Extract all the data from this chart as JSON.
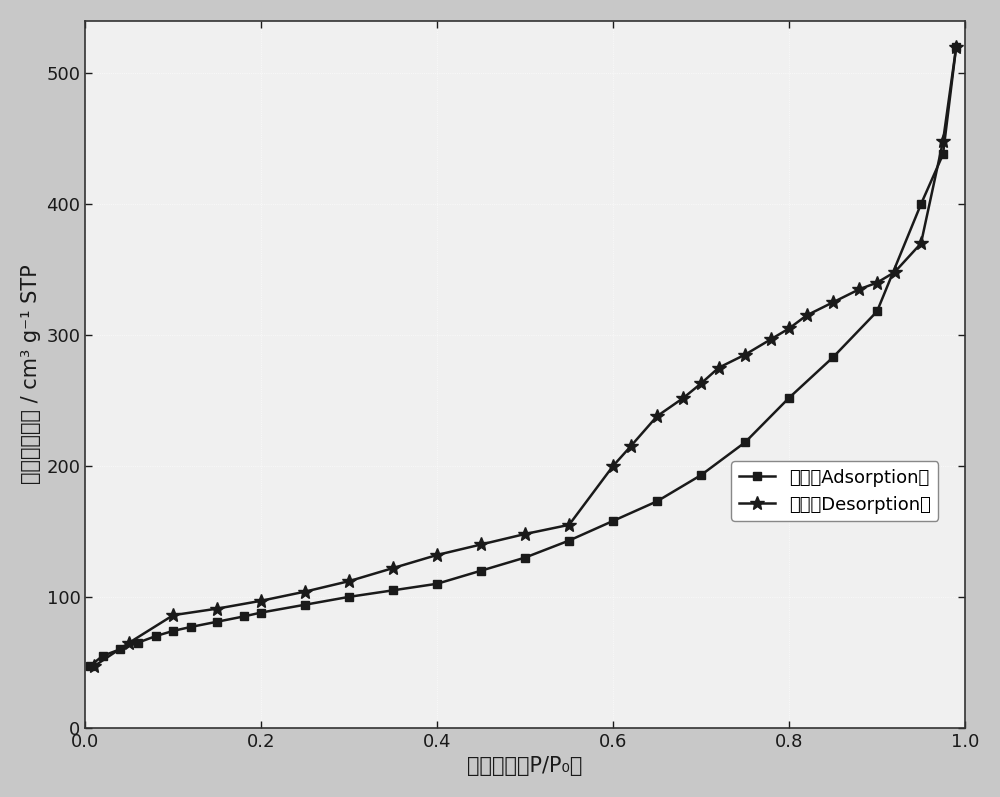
{
  "adsorption_x": [
    0.005,
    0.02,
    0.04,
    0.06,
    0.08,
    0.1,
    0.12,
    0.15,
    0.18,
    0.2,
    0.25,
    0.3,
    0.35,
    0.4,
    0.45,
    0.5,
    0.55,
    0.6,
    0.65,
    0.7,
    0.75,
    0.8,
    0.85,
    0.9,
    0.95,
    0.975,
    0.99
  ],
  "adsorption_y": [
    47,
    55,
    60,
    65,
    70,
    74,
    77,
    81,
    85,
    88,
    94,
    100,
    105,
    110,
    120,
    130,
    143,
    158,
    173,
    193,
    218,
    252,
    283,
    318,
    400,
    438,
    520
  ],
  "desorption_x": [
    0.99,
    0.975,
    0.95,
    0.92,
    0.9,
    0.88,
    0.85,
    0.82,
    0.8,
    0.78,
    0.75,
    0.72,
    0.7,
    0.68,
    0.65,
    0.62,
    0.6,
    0.55,
    0.5,
    0.45,
    0.4,
    0.35,
    0.3,
    0.25,
    0.2,
    0.15,
    0.1,
    0.05,
    0.01
  ],
  "desorption_y": [
    520,
    448,
    370,
    348,
    340,
    335,
    325,
    315,
    305,
    297,
    285,
    275,
    263,
    252,
    238,
    215,
    200,
    155,
    148,
    140,
    132,
    122,
    112,
    104,
    97,
    91,
    86,
    65,
    47
  ],
  "line_color": "#1a1a1a",
  "marker_adsorption": "s",
  "marker_desorption": "*",
  "marker_size_square": 6,
  "marker_size_star": 10,
  "xlabel": "相对压强（P/P₀）",
  "ylabel": "氮气吸附体积 / cm³ g⁻¹ STP",
  "xlim": [
    0.0,
    1.0
  ],
  "ylim": [
    0,
    540
  ],
  "yticks": [
    0,
    100,
    200,
    300,
    400,
    500
  ],
  "xticks": [
    0.0,
    0.2,
    0.4,
    0.6,
    0.8,
    1.0
  ],
  "legend_adsorption": "吸附（Adsorption）",
  "legend_desorption": "脱附（Desorption）",
  "outer_background_color": "#c8c8c8",
  "plot_bg_color": "#f0f0f0",
  "grid_color": "#ffffff",
  "linewidth": 1.8,
  "fontsize_axis_label": 15,
  "fontsize_tick": 13,
  "fontsize_legend": 13
}
